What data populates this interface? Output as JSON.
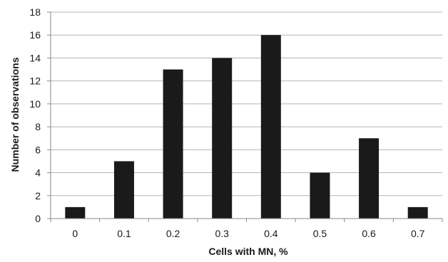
{
  "chart_data": {
    "type": "bar",
    "categories": [
      "0",
      "0.1",
      "0.2",
      "0.3",
      "0.4",
      "0.5",
      "0.6",
      "0.7"
    ],
    "values": [
      1,
      5,
      13,
      14,
      16,
      4,
      7,
      1
    ],
    "xlabel": "Cells with MN, %",
    "ylabel": "Number of observations",
    "ylim": [
      0,
      18
    ],
    "yticks": [
      "0",
      "2",
      "4",
      "6",
      "8",
      "10",
      "12",
      "14",
      "16",
      "18"
    ],
    "grid": "horizontal",
    "bar_color": "#1a1a1a"
  }
}
